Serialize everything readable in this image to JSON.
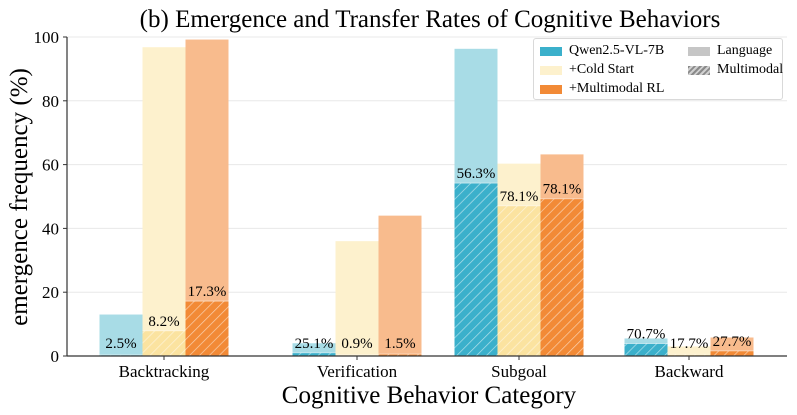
{
  "chart_data": {
    "type": "bar",
    "title": "(b) Emergence and Transfer Rates of Cognitive Behaviors",
    "xlabel": "Cognitive Behavior Category",
    "ylabel": "emergence frequency (%)",
    "categories": [
      "Backtracking",
      "Verification",
      "Subgoal",
      "Backward"
    ],
    "ylim": [
      0,
      100
    ],
    "yticks": [
      "0",
      "20",
      "40",
      "60",
      "80",
      "100"
    ],
    "series": [
      {
        "name": "Qwen2.5-VL-7B",
        "language_color": "#a8dce6",
        "multimodal_color": "#3bb0cb",
        "language_values": [
          13,
          4,
          96.3,
          5.5
        ],
        "multimodal_values": [
          0.3,
          1,
          54.2,
          3.9
        ],
        "transfer_labels": [
          "2.5%",
          "25.1%",
          "56.3%",
          "70.7%"
        ]
      },
      {
        "name": "+Cold Start",
        "language_color": "#fdf1cd",
        "multimodal_color": "#fbe3a0",
        "language_values": [
          96.8,
          36,
          60.3,
          3
        ],
        "multimodal_values": [
          7.9,
          0.3,
          47.1,
          0.5
        ],
        "transfer_labels": [
          "8.2%",
          "0.9%",
          "78.1%",
          "17.7%"
        ]
      },
      {
        "name": "+Multimodal RL",
        "language_color": "#f8bb8d",
        "multimodal_color": "#f28a36",
        "language_values": [
          99.2,
          44,
          63.2,
          5.8
        ],
        "multimodal_values": [
          17.2,
          0.6,
          49.3,
          1.6
        ],
        "transfer_labels": [
          "17.3%",
          "1.5%",
          "78.1%",
          "27.7%"
        ]
      }
    ],
    "legend": {
      "placement": "top-right",
      "entries": [
        "Qwen2.5-VL-7B",
        "+Cold Start",
        "+Multimodal RL"
      ],
      "style_entries": [
        "Language",
        "Multimodal"
      ],
      "style_colors": [
        "#c6c6c6",
        "#9a9a9a"
      ]
    },
    "grid": "horizontal"
  }
}
